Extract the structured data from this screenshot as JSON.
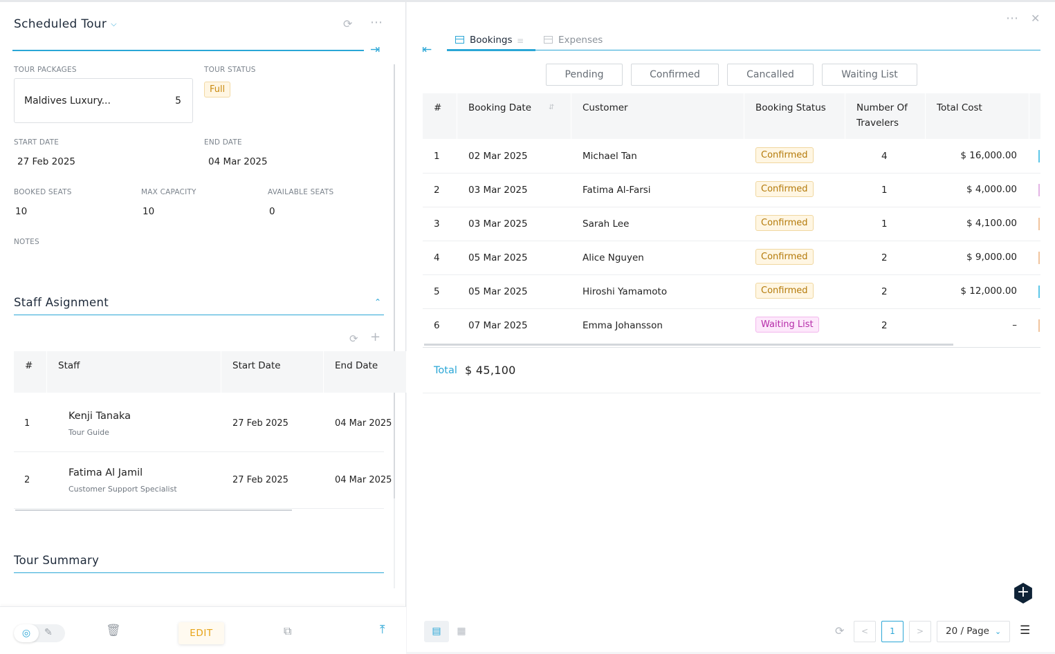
{
  "left": {
    "title": "Scheduled Tour",
    "fields": {
      "tour_packages_label": "TOUR PACKAGES",
      "tour_package_name": "Maldives Luxury...",
      "tour_package_count": "5",
      "tour_status_label": "TOUR STATUS",
      "tour_status": "Full",
      "start_date_label": "START DATE",
      "start_date": "27 Feb 2025",
      "end_date_label": "END DATE",
      "end_date": "04 Mar 2025",
      "booked_seats_label": "BOOKED SEATS",
      "booked_seats": "10",
      "max_capacity_label": "MAX CAPACITY",
      "max_capacity": "10",
      "available_seats_label": "AVAILABLE SEATS",
      "available_seats": "0",
      "notes_label": "NOTES"
    },
    "staff_section": {
      "title": "Staff Asignment",
      "headers": [
        "#",
        "Staff",
        "Start Date",
        "End Date"
      ],
      "rows": [
        {
          "num": "1",
          "name": "Kenji Tanaka",
          "role": "Tour Guide",
          "start": "27 Feb 2025",
          "end": "04 Mar 2025"
        },
        {
          "num": "2",
          "name": "Fatima Al Jamil",
          "role": "Customer Support Specialist",
          "start": "27 Feb 2025",
          "end": "04 Mar 2025"
        }
      ]
    },
    "summary_title": "Tour Summary",
    "footer": {
      "edit_label": "EDIT"
    }
  },
  "right": {
    "tabs": [
      {
        "label": "Bookings",
        "active": true
      },
      {
        "label": "Expenses",
        "active": false
      }
    ],
    "filters": [
      "Pending",
      "Confirmed",
      "Cancalled",
      "Waiting List"
    ],
    "headers": {
      "num": "#",
      "booking_date": "Booking Date",
      "customer": "Customer",
      "status": "Booking Status",
      "travelers": "Number Of Travelers",
      "total_cost": "Total Cost"
    },
    "rows": [
      {
        "num": "1",
        "date": "02 Mar 2025",
        "customer": "Michael Tan",
        "status": "Confirmed",
        "travelers": "4",
        "cost": "$ 16,000.00"
      },
      {
        "num": "2",
        "date": "03 Mar 2025",
        "customer": "Fatima Al-Farsi",
        "status": "Confirmed",
        "travelers": "1",
        "cost": "$ 4,000.00"
      },
      {
        "num": "3",
        "date": "03 Mar 2025",
        "customer": "Sarah Lee",
        "status": "Confirmed",
        "travelers": "1",
        "cost": "$ 4,100.00"
      },
      {
        "num": "4",
        "date": "05 Mar 2025",
        "customer": "Alice Nguyen",
        "status": "Confirmed",
        "travelers": "2",
        "cost": "$ 9,000.00"
      },
      {
        "num": "5",
        "date": "05 Mar 2025",
        "customer": "Hiroshi Yamamoto",
        "status": "Confirmed",
        "travelers": "2",
        "cost": "$ 12,000.00"
      },
      {
        "num": "6",
        "date": "07 Mar 2025",
        "customer": "Emma Johansson",
        "status": "Waiting List",
        "travelers": "2",
        "cost": "–"
      }
    ],
    "total_label": "Total",
    "total_value": "$ 45,100",
    "pagination": {
      "current_page": "1",
      "page_size": "20 / Page"
    }
  },
  "colors": {
    "accent": "#2aa6d6",
    "confirmed": "#b47a0a",
    "waiting": "#b52aa8",
    "edit": "#e6a317"
  },
  "icons": [
    "chevron-down-icon",
    "refresh-icon",
    "more-icon",
    "collapse-right-icon",
    "collapse-left-icon",
    "close-icon",
    "chevron-up-icon",
    "add-icon",
    "eye-icon",
    "edit-icon",
    "delete-icon",
    "copy-icon",
    "scroll-top-icon",
    "table-view-icon",
    "grid-view-icon",
    "prev-page-icon",
    "next-page-icon",
    "settings-sliders-icon",
    "sort-icon"
  ]
}
